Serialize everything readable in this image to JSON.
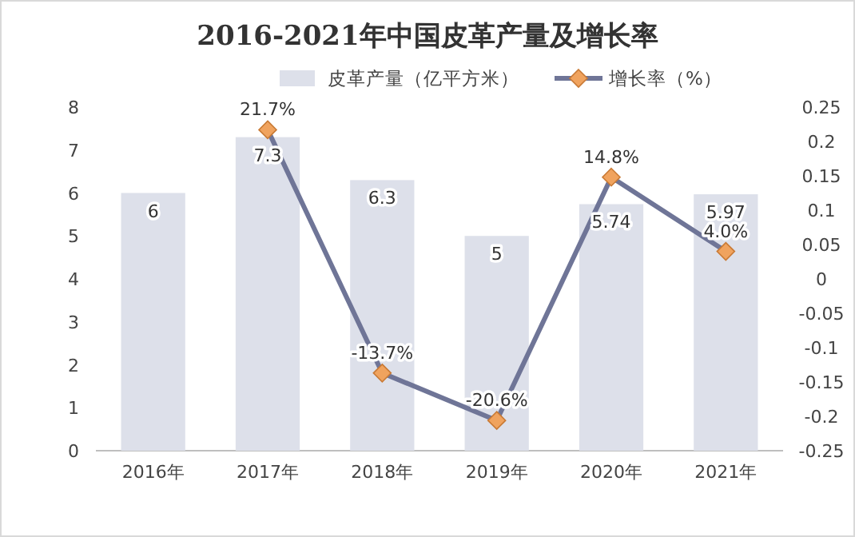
{
  "chart_data": {
    "type": "bar",
    "title": "2016-2021年中国皮革产量及增长率",
    "categories": [
      "2016年",
      "2017年",
      "2018年",
      "2019年",
      "2020年",
      "2021年"
    ],
    "series": [
      {
        "name": "皮革产量（亿平方米）",
        "type": "bar",
        "color": "#dde0ea",
        "values": [
          6,
          7.3,
          6.3,
          5,
          5.74,
          5.97
        ],
        "value_labels": [
          "6",
          "7.3",
          "6.3",
          "5",
          "5.74",
          "5.97"
        ]
      },
      {
        "name": "增长率（%）",
        "type": "line",
        "axis": "y2",
        "color": "#6f7597",
        "marker": "diamond",
        "values": [
          null,
          0.217,
          -0.137,
          -0.206,
          0.148,
          0.04
        ],
        "value_labels": [
          null,
          "21.7%",
          "-13.7%",
          "-20.6%",
          "14.8%",
          "4.0%"
        ]
      }
    ],
    "ylim": [
      0,
      8
    ],
    "yticks": [
      0,
      1,
      2,
      3,
      4,
      5,
      6,
      7,
      8
    ],
    "y2lim": [
      -0.25,
      0.25
    ],
    "y2ticks": [
      -0.25,
      -0.2,
      -0.15,
      -0.1,
      -0.05,
      0,
      0.05,
      0.1,
      0.15,
      0.2,
      0.25
    ],
    "legend": "top",
    "grid": false
  }
}
